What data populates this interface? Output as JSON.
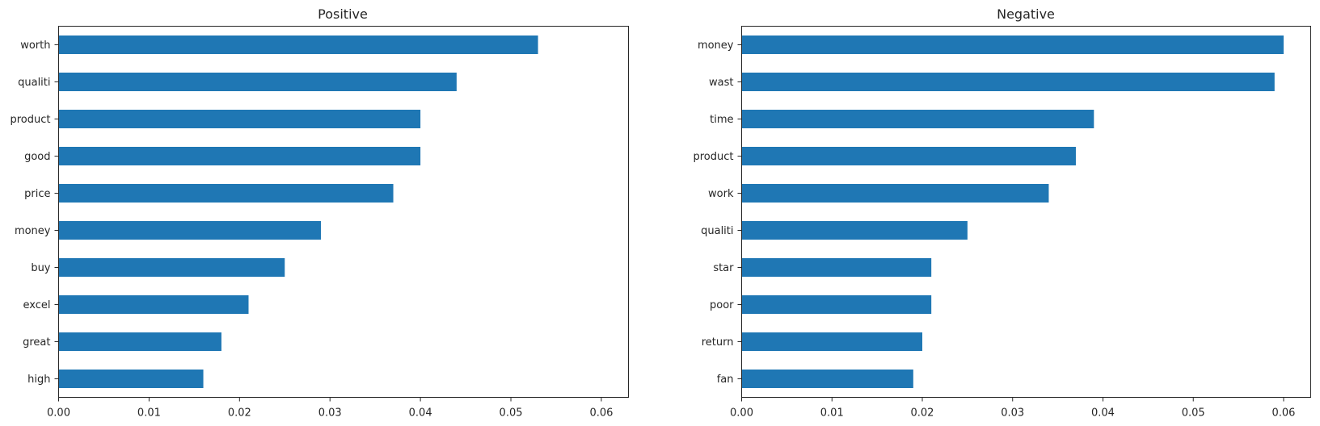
{
  "chart_data": [
    {
      "type": "bar",
      "orientation": "horizontal",
      "title": "Positive",
      "xlabel": "",
      "ylabel": "",
      "categories": [
        "worth",
        "qualiti",
        "product",
        "good",
        "price",
        "money",
        "buy",
        "excel",
        "great",
        "high"
      ],
      "values": [
        0.053,
        0.044,
        0.04,
        0.04,
        0.037,
        0.029,
        0.025,
        0.021,
        0.018,
        0.016
      ],
      "xlim": [
        0.0,
        0.063
      ],
      "xticks": [
        "0.00",
        "0.01",
        "0.02",
        "0.03",
        "0.04",
        "0.05",
        "0.06"
      ],
      "bar_color": "#1f77b4",
      "grid": false
    },
    {
      "type": "bar",
      "orientation": "horizontal",
      "title": "Negative",
      "xlabel": "",
      "ylabel": "",
      "categories": [
        "money",
        "wast",
        "time",
        "product",
        "work",
        "qualiti",
        "star",
        "poor",
        "return",
        "fan"
      ],
      "values": [
        0.06,
        0.059,
        0.039,
        0.037,
        0.034,
        0.025,
        0.021,
        0.021,
        0.02,
        0.019
      ],
      "xlim": [
        0.0,
        0.063
      ],
      "xticks": [
        "0.00",
        "0.01",
        "0.02",
        "0.03",
        "0.04",
        "0.05",
        "0.06"
      ],
      "bar_color": "#1f77b4",
      "grid": false
    }
  ]
}
